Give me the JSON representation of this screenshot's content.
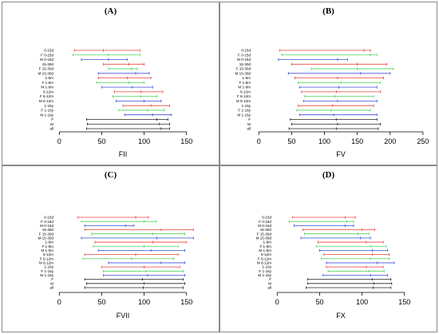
{
  "colors": {
    "red": "#e8453c",
    "green": "#4cd45a",
    "blue": "#3d4fd8",
    "black": "#222222",
    "axis": "#000000"
  },
  "chart_data": [
    {
      "type": "interval",
      "panel_label": "(A)",
      "xlabel": "FII",
      "xlim": [
        -5,
        170
      ],
      "xticks": [
        0,
        50,
        100,
        150
      ],
      "categories": [
        "0-15d",
        "F 0-15d",
        "M 0-15d",
        "15-30d",
        "F 15-30d",
        "M 15-30d",
        "1-6m",
        "F 1-6m",
        "M 1-6m",
        "6-12m",
        "F 6-12m",
        "M 6-12m",
        "1-16y",
        "F 1-16y",
        "M 1-16y",
        "F",
        "M",
        "all"
      ],
      "series_colors": [
        "red",
        "green",
        "blue",
        "red",
        "green",
        "blue",
        "red",
        "green",
        "blue",
        "red",
        "green",
        "blue",
        "red",
        "green",
        "blue",
        "black",
        "black",
        "black"
      ],
      "intervals": [
        [
          18,
          95
        ],
        [
          16,
          95
        ],
        [
          26,
          80
        ],
        [
          52,
          100
        ],
        [
          58,
          92
        ],
        [
          46,
          106
        ],
        [
          46,
          108
        ],
        [
          44,
          100
        ],
        [
          50,
          110
        ],
        [
          65,
          122
        ],
        [
          63,
          115
        ],
        [
          67,
          120
        ],
        [
          75,
          130
        ],
        [
          70,
          124
        ],
        [
          77,
          132
        ],
        [
          32,
          128
        ],
        [
          33,
          130
        ],
        [
          32,
          130
        ]
      ],
      "medians": [
        52,
        58,
        58,
        82,
        85,
        90,
        80,
        82,
        86,
        96,
        96,
        100,
        108,
        104,
        110,
        115,
        118,
        120
      ]
    },
    {
      "type": "interval",
      "panel_label": "(B)",
      "xlabel": "FV",
      "xlim": [
        -10,
        255
      ],
      "xticks": [
        0,
        50,
        100,
        150,
        200,
        250
      ],
      "categories": [
        "0-15d",
        "F 0-15d",
        "M 0-15d",
        "15-30d",
        "F 15-30d",
        "M 15-30d",
        "1-6m",
        "F 1-6m",
        "M 1-6m",
        "6-12m",
        "F 6-12m",
        "M 6-12m",
        "1-16y",
        "F 1-16y",
        "M 1-16y",
        "F",
        "M",
        "all"
      ],
      "series_colors": [
        "red",
        "green",
        "blue",
        "red",
        "green",
        "blue",
        "red",
        "green",
        "blue",
        "red",
        "green",
        "blue",
        "red",
        "green",
        "blue",
        "black",
        "black",
        "black"
      ],
      "intervals": [
        [
          32,
          170
        ],
        [
          35,
          180
        ],
        [
          30,
          135
        ],
        [
          50,
          195
        ],
        [
          80,
          205
        ],
        [
          45,
          200
        ],
        [
          55,
          190
        ],
        [
          60,
          185
        ],
        [
          62,
          180
        ],
        [
          65,
          185
        ],
        [
          70,
          175
        ],
        [
          68,
          180
        ],
        [
          60,
          175
        ],
        [
          58,
          170
        ],
        [
          62,
          180
        ],
        [
          48,
          180
        ],
        [
          50,
          185
        ],
        [
          46,
          182
        ]
      ],
      "medians": [
        160,
        170,
        120,
        150,
        150,
        155,
        120,
        125,
        122,
        118,
        116,
        120,
        112,
        110,
        114,
        118,
        120,
        118
      ]
    },
    {
      "type": "interval",
      "panel_label": "(C)",
      "xlabel": "FVII",
      "xlim": [
        -5,
        170
      ],
      "xticks": [
        0,
        50,
        100,
        150
      ],
      "categories": [
        "0-15d",
        "F 0-15d",
        "M 0-15d",
        "15-30d",
        "F 15-30d",
        "M 15-30d",
        "1-6m",
        "F 1-6m",
        "M 1-6m",
        "6-12m",
        "F 6-12m",
        "M 6-12m",
        "1-16y",
        "F 1-16y",
        "M 1-16y",
        "F",
        "M",
        "all"
      ],
      "series_colors": [
        "red",
        "green",
        "blue",
        "red",
        "green",
        "blue",
        "red",
        "green",
        "blue",
        "red",
        "green",
        "blue",
        "red",
        "green",
        "blue",
        "black",
        "black",
        "black"
      ],
      "intervals": [
        [
          22,
          105
        ],
        [
          26,
          114
        ],
        [
          30,
          88
        ],
        [
          30,
          158
        ],
        [
          38,
          148
        ],
        [
          26,
          158
        ],
        [
          42,
          150
        ],
        [
          40,
          140
        ],
        [
          46,
          148
        ],
        [
          30,
          140
        ],
        [
          28,
          135
        ],
        [
          58,
          148
        ],
        [
          50,
          142
        ],
        [
          52,
          146
        ],
        [
          52,
          148
        ],
        [
          30,
          146
        ],
        [
          32,
          148
        ],
        [
          30,
          146
        ]
      ],
      "medians": [
        90,
        100,
        78,
        120,
        110,
        115,
        110,
        100,
        108,
        90,
        85,
        120,
        100,
        102,
        104,
        98,
        100,
        99
      ]
    },
    {
      "type": "interval",
      "panel_label": "(D)",
      "xlabel": "FX",
      "xlim": [
        -5,
        170
      ],
      "xticks": [
        0,
        50,
        100,
        150
      ],
      "categories": [
        "0-15d",
        "F 0-15d",
        "M 0-15d",
        "15-30d",
        "F 15-30d",
        "M 15-30d",
        "1-6m",
        "F 1-6m",
        "M 1-6m",
        "6-12m",
        "F 6-12m",
        "M 6-12m",
        "1-16y",
        "F 1-16y",
        "M 1-16y",
        "F",
        "M",
        "all"
      ],
      "series_colors": [
        "red",
        "green",
        "blue",
        "red",
        "green",
        "blue",
        "red",
        "green",
        "blue",
        "red",
        "green",
        "blue",
        "red",
        "green",
        "blue",
        "black",
        "black",
        "black"
      ],
      "intervals": [
        [
          18,
          92
        ],
        [
          14,
          90
        ],
        [
          20,
          90
        ],
        [
          30,
          115
        ],
        [
          32,
          108
        ],
        [
          28,
          110
        ],
        [
          48,
          125
        ],
        [
          46,
          128
        ],
        [
          50,
          130
        ],
        [
          55,
          132
        ],
        [
          52,
          132
        ],
        [
          58,
          138
        ],
        [
          58,
          125
        ],
        [
          60,
          126
        ],
        [
          54,
          130
        ],
        [
          36,
          134
        ],
        [
          36,
          135
        ],
        [
          34,
          134
        ]
      ],
      "medians": [
        80,
        82,
        80,
        100,
        95,
        98,
        105,
        110,
        112,
        112,
        110,
        118,
        105,
        108,
        110,
        112,
        114,
        113
      ]
    }
  ]
}
